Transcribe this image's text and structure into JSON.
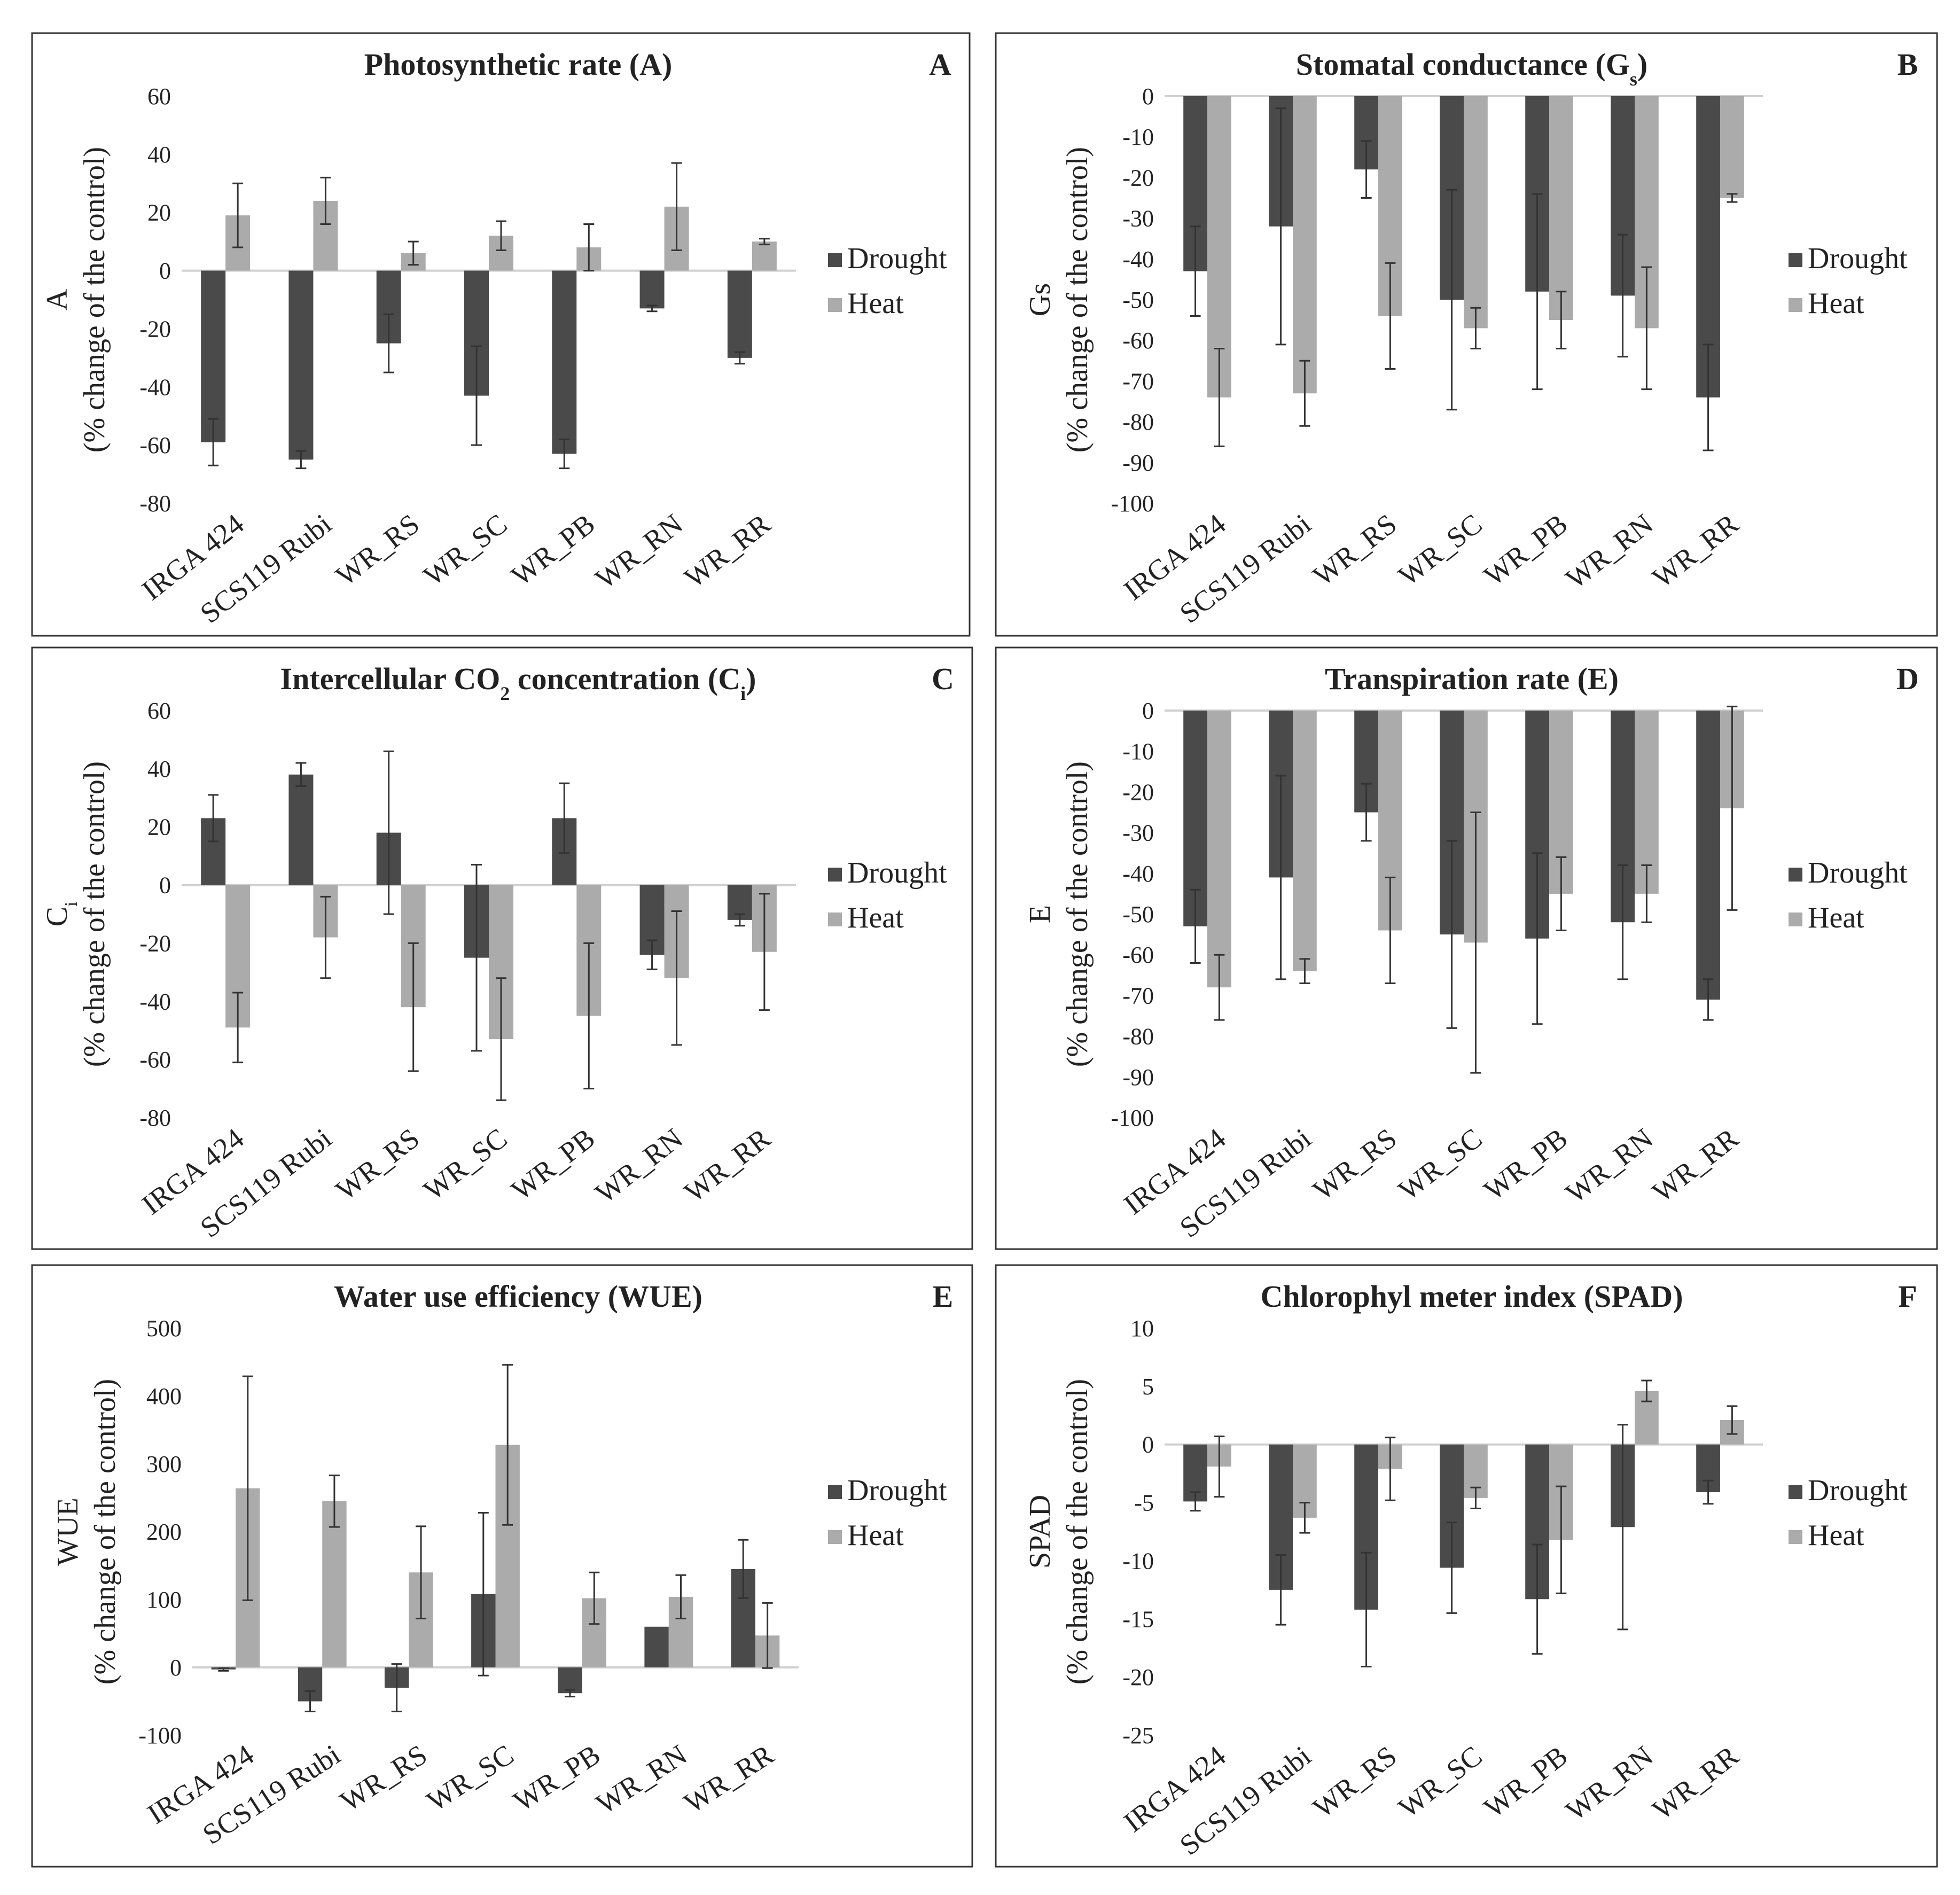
{
  "colors": {
    "drought": "#4a4a4a",
    "heat": "#ababab",
    "border": "#333333",
    "axis": "#d0d0d0"
  },
  "legend": {
    "drought": "Drought",
    "heat": "Heat"
  },
  "categories": [
    "IRGA 424",
    "SCS119 Rubi",
    "WR_RS",
    "WR_SC",
    "WR_PB",
    "WR_RN",
    "WR_RR"
  ],
  "chart_data": [
    {
      "type": "bar",
      "letter": "A",
      "title": "Photosynthetic rate (A)",
      "ylabel_main": "A",
      "ylabel_sub": "(% change of the control)",
      "ylim": [
        -80,
        60
      ],
      "yticks": [
        60,
        40,
        20,
        0,
        -20,
        -40,
        -60,
        -80
      ],
      "legend_position": "right",
      "series": [
        {
          "name": "Drought",
          "values": [
            -59,
            -65,
            -25,
            -43,
            -63,
            -13,
            -30
          ],
          "err": [
            8,
            3,
            10,
            17,
            5,
            1,
            2
          ]
        },
        {
          "name": "Heat",
          "values": [
            19,
            24,
            6,
            12,
            8,
            22,
            10
          ],
          "err": [
            11,
            8,
            4,
            5,
            8,
            15,
            1
          ]
        }
      ]
    },
    {
      "type": "bar",
      "letter": "B",
      "title_main": "Stomatal conductance (G",
      "title_sub": "s",
      "title_end": ")",
      "ylabel_main": "Gs",
      "ylabel_sub": "(% change of the control)",
      "ylim": [
        -100,
        0
      ],
      "yticks": [
        0,
        -10,
        -20,
        -30,
        -40,
        -50,
        -60,
        -70,
        -80,
        -90,
        -100
      ],
      "legend_position": "right",
      "series": [
        {
          "name": "Drought",
          "values": [
            -43,
            -32,
            -18,
            -50,
            -48,
            -49,
            -74
          ],
          "err": [
            11,
            29,
            7,
            27,
            24,
            15,
            13
          ]
        },
        {
          "name": "Heat",
          "values": [
            -74,
            -73,
            -54,
            -57,
            -55,
            -57,
            -25
          ],
          "err": [
            12,
            8,
            13,
            5,
            7,
            15,
            1
          ]
        }
      ]
    },
    {
      "type": "bar",
      "letter": "C",
      "title_main": "Intercellular CO",
      "title_sub": "2",
      "title_end": " concentration (C",
      "title_sub2": "i",
      "title_end2": ")",
      "ylabel_main": "C",
      "ylabel_main_sub": "i",
      "ylabel_sub": "(% change of the control)",
      "ylim": [
        -80,
        60
      ],
      "yticks": [
        60,
        40,
        20,
        0,
        -20,
        -40,
        -60,
        -80
      ],
      "legend_position": "right",
      "series": [
        {
          "name": "Drought",
          "values": [
            23,
            38,
            18,
            -25,
            23,
            -24,
            -12
          ],
          "err": [
            8,
            4,
            28,
            32,
            12,
            5,
            2
          ]
        },
        {
          "name": "Heat",
          "values": [
            -49,
            -18,
            -42,
            -53,
            -45,
            -32,
            -23
          ],
          "err": [
            12,
            14,
            22,
            21,
            25,
            23,
            20
          ]
        }
      ]
    },
    {
      "type": "bar",
      "letter": "D",
      "title": "Transpiration rate (E)",
      "ylabel_main": "E",
      "ylabel_sub": "(% change of the control)",
      "ylim": [
        -100,
        0
      ],
      "yticks": [
        0,
        -10,
        -20,
        -30,
        -40,
        -50,
        -60,
        -70,
        -80,
        -90,
        -100
      ],
      "legend_position": "right",
      "series": [
        {
          "name": "Drought",
          "values": [
            -53,
            -41,
            -25,
            -55,
            -56,
            -52,
            -71
          ],
          "err": [
            9,
            25,
            7,
            23,
            21,
            14,
            5
          ]
        },
        {
          "name": "Heat",
          "values": [
            -68,
            -64,
            -54,
            -57,
            -45,
            -45,
            -24
          ],
          "err": [
            8,
            3,
            13,
            32,
            9,
            7,
            25
          ]
        }
      ]
    },
    {
      "type": "bar",
      "letter": "E",
      "title": "Water use efficiency (WUE)",
      "ylabel_main": "WUE",
      "ylabel_sub": "(% change of the control)",
      "ylim": [
        -100,
        500
      ],
      "yticks": [
        500,
        400,
        300,
        200,
        100,
        0,
        -100
      ],
      "legend_position": "right",
      "series": [
        {
          "name": "Drought",
          "values": [
            -3,
            -50,
            -30,
            108,
            -38,
            60,
            145
          ],
          "err": [
            2,
            15,
            35,
            120,
            5,
            0,
            43
          ]
        },
        {
          "name": "Heat",
          "values": [
            264,
            245,
            140,
            328,
            102,
            104,
            47
          ],
          "err": [
            165,
            38,
            68,
            118,
            38,
            32,
            48
          ]
        }
      ]
    },
    {
      "type": "bar",
      "letter": "F",
      "title": "Chlorophyl meter index (SPAD)",
      "ylabel_main": "SPAD",
      "ylabel_sub": "(% change of the control)",
      "ylim": [
        -25,
        10
      ],
      "yticks": [
        10,
        5,
        0,
        -5,
        -10,
        -15,
        -20,
        -25
      ],
      "legend_position": "right",
      "series": [
        {
          "name": "Drought",
          "values": [
            -4.9,
            -12.5,
            -14.2,
            -10.6,
            -13.3,
            -7.1,
            -4.1
          ],
          "err": [
            0.8,
            3.0,
            4.9,
            3.9,
            4.7,
            8.8,
            1.0
          ]
        },
        {
          "name": "Heat",
          "values": [
            -1.9,
            -6.3,
            -2.1,
            -4.6,
            -8.2,
            4.6,
            2.1
          ],
          "err": [
            2.6,
            1.3,
            2.7,
            0.9,
            4.6,
            0.9,
            1.2
          ]
        }
      ]
    }
  ]
}
